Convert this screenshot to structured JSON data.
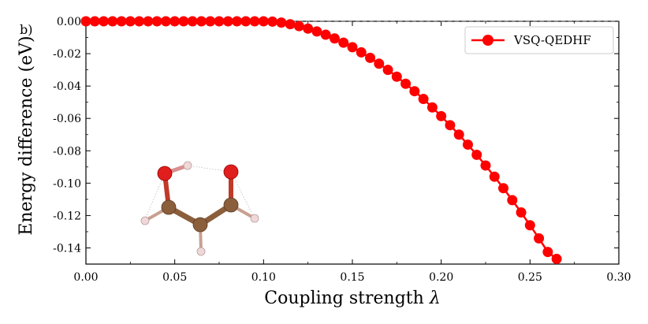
{
  "panel_label": "b)",
  "chart_data": {
    "type": "scatter",
    "xlabel": "Coupling strength λ",
    "ylabel": "Energy difference (eV)",
    "xlim": [
      0.0,
      0.3
    ],
    "ylim": [
      -0.15,
      0.0
    ],
    "xticks": [
      "0.00",
      "0.05",
      "0.10",
      "0.15",
      "0.20",
      "0.25",
      "0.30"
    ],
    "yticks": [
      "0.00",
      "-0.02",
      "-0.04",
      "-0.06",
      "-0.08",
      "-0.10",
      "-0.12",
      "-0.14"
    ],
    "grid": false,
    "legend_position": "top-right",
    "series": [
      {
        "name": "VSQ-QEDHF",
        "color": "#ff0000",
        "marker": "circle",
        "line": true,
        "x": [
          0.0,
          0.005,
          0.01,
          0.015,
          0.02,
          0.025,
          0.03,
          0.035,
          0.04,
          0.045,
          0.05,
          0.055,
          0.06,
          0.065,
          0.07,
          0.075,
          0.08,
          0.085,
          0.09,
          0.095,
          0.1,
          0.105,
          0.11,
          0.115,
          0.12,
          0.125,
          0.13,
          0.135,
          0.14,
          0.145,
          0.15,
          0.155,
          0.16,
          0.165,
          0.17,
          0.175,
          0.18,
          0.185,
          0.19,
          0.195,
          0.2,
          0.205,
          0.21,
          0.215,
          0.22,
          0.225,
          0.23,
          0.235,
          0.24,
          0.245,
          0.25,
          0.255,
          0.26,
          0.265
        ],
        "y": [
          0.0,
          0.0,
          0.0,
          0.0,
          0.0,
          0.0,
          0.0,
          0.0,
          0.0,
          0.0,
          0.0,
          0.0,
          0.0,
          0.0,
          0.0,
          0.0,
          0.0,
          0.0,
          0.0,
          0.0,
          0.0,
          -0.0002,
          -0.0008,
          -0.0018,
          -0.003,
          -0.0045,
          -0.0063,
          -0.0083,
          -0.0106,
          -0.0132,
          -0.016,
          -0.0192,
          -0.0226,
          -0.0262,
          -0.03,
          -0.0342,
          -0.0386,
          -0.0432,
          -0.048,
          -0.0532,
          -0.0586,
          -0.0642,
          -0.07,
          -0.0762,
          -0.0825,
          -0.0891,
          -0.096,
          -0.1031,
          -0.1105,
          -0.1181,
          -0.126,
          -0.1341,
          -0.1425,
          -0.1468
        ]
      }
    ]
  },
  "inset": {
    "kind": "molecule",
    "colors": {
      "oxygen": "#e01e1e",
      "carbon": "#8b5e3c",
      "hydrogen": "#f0d8d8",
      "bond": "#8b5e3c"
    }
  }
}
